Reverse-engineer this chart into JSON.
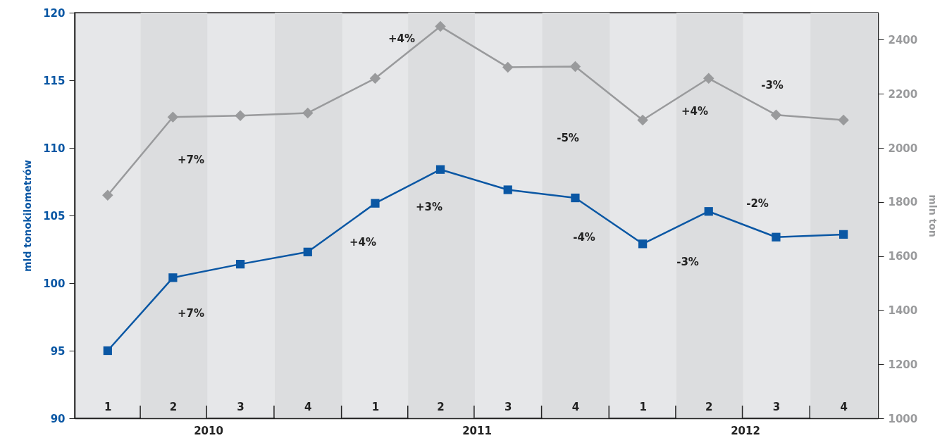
{
  "chart_data": {
    "type": "line",
    "ylabel": "mld tonokilometrów",
    "y2label": "mln ton",
    "x": [
      "2010-02-15",
      "2010-05-15",
      "2010-08-15",
      "2010-11-15",
      "2011-02-15",
      "2011-05-15",
      "2011-08-15",
      "2011-11-15",
      "2012-02-15",
      "2012-05-15",
      "2012-08-15",
      "2012-11-15"
    ],
    "xlim": [
      "2010-01-01",
      "2013-01-01"
    ],
    "xticks": [
      {
        "value": "2010-02-15",
        "label": "1"
      },
      {
        "value": "2010-05-15",
        "label": "2"
      },
      {
        "value": "2010-08-15",
        "label": "3"
      },
      {
        "value": "2010-11-15",
        "label": "4"
      },
      {
        "value": "2011-02-15",
        "label": "1"
      },
      {
        "value": "2011-05-15",
        "label": "2"
      },
      {
        "value": "2011-08-15",
        "label": "3"
      },
      {
        "value": "2011-11-15",
        "label": "4"
      },
      {
        "value": "2012-02-15",
        "label": "1"
      },
      {
        "value": "2012-05-15",
        "label": "2"
      },
      {
        "value": "2012-08-15",
        "label": "3"
      },
      {
        "value": "2012-11-15",
        "label": "4"
      }
    ],
    "ylim": [
      90,
      120
    ],
    "yticks": [
      90,
      95,
      100,
      105,
      110,
      115,
      120
    ],
    "y2lim": [
      1000,
      2500
    ],
    "y2ticks": [
      1000,
      1200,
      1400,
      1600,
      1800,
      2000,
      2200,
      2400
    ],
    "series": [
      {
        "color": "#0a57a4",
        "marker": "square",
        "values": [
          95.0,
          100.4,
          101.4,
          102.3,
          105.9,
          108.4,
          106.9,
          106.3,
          102.9,
          105.3,
          103.4,
          103.6
        ]
      },
      {
        "color": "#999a9c",
        "marker": "diamond",
        "axis": "y2",
        "values": [
          1825,
          2114,
          2119,
          2129,
          2257,
          2449,
          2298,
          2301,
          2103,
          2257,
          2122,
          2103
        ]
      }
    ],
    "bands": [
      {
        "axis": "x",
        "from": "2010-04-01",
        "to": "2010-07-01",
        "color": "#dcdddf"
      },
      {
        "axis": "x",
        "from": "2010-10-01",
        "to": "2011-01-01",
        "color": "#dcdddf"
      },
      {
        "axis": "x",
        "from": "2011-04-01",
        "to": "2011-07-01",
        "color": "#dcdddf"
      },
      {
        "axis": "x",
        "from": "2011-10-01",
        "to": "2012-01-01",
        "color": "#dcdddf"
      },
      {
        "axis": "x",
        "from": "2012-04-01",
        "to": "2012-07-01",
        "color": "#dcdddf"
      },
      {
        "axis": "x",
        "from": "2012-10-01",
        "to": "2013-01-01",
        "color": "#dcdddf"
      }
    ],
    "annotations": [
      "2010",
      "2011",
      "2012",
      "+7%",
      "+7%",
      "+4%",
      "+4%",
      "+3%",
      "-5%",
      "-4%",
      "+4%",
      "-3%",
      "-3%",
      "-2%"
    ]
  }
}
